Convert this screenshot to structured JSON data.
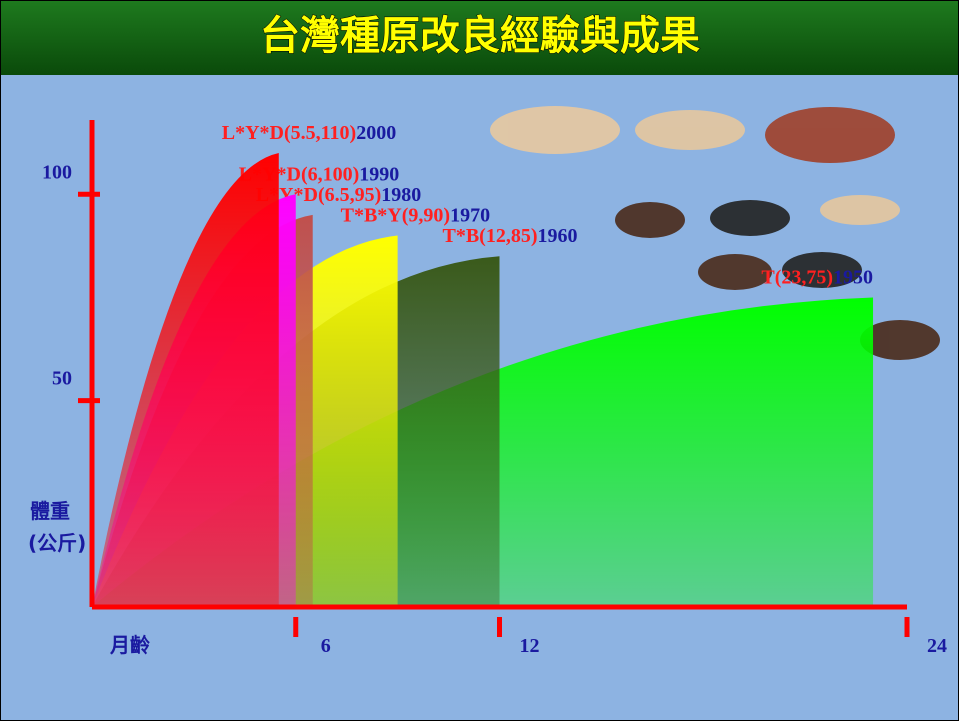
{
  "chart_data": {
    "type": "area",
    "title": "台灣種原改良經驗與成果",
    "x_label": "月齡",
    "y_label": [
      "體重",
      "(公斤)"
    ],
    "xlim": [
      0,
      24
    ],
    "xticks": [
      6,
      12,
      24
    ],
    "ylim": [
      0,
      118
    ],
    "yticks": [
      50,
      100
    ],
    "series": [
      {
        "name": "L*Y*D(5.5,110)",
        "year": "2000",
        "months": 5.5,
        "weight": 110,
        "color": "#ff0000"
      },
      {
        "name": "L*Y*D(6,100)",
        "year": "1990",
        "months": 6,
        "weight": 100,
        "color": "#ff00ff"
      },
      {
        "name": "L*Y*D(6.5,95)",
        "year": "1980",
        "months": 6.5,
        "weight": 95,
        "color": "#c0504d"
      },
      {
        "name": "T*B*Y(9,90)",
        "year": "1970",
        "months": 9,
        "weight": 90,
        "color": "#ffff00"
      },
      {
        "name": "T*B(12,85)",
        "year": "1960",
        "months": 12,
        "weight": 85,
        "color": "#3a5a1a"
      },
      {
        "name": "T(23,75)",
        "year": "1950",
        "months": 23,
        "weight": 75,
        "color": "#00ff00"
      }
    ]
  }
}
